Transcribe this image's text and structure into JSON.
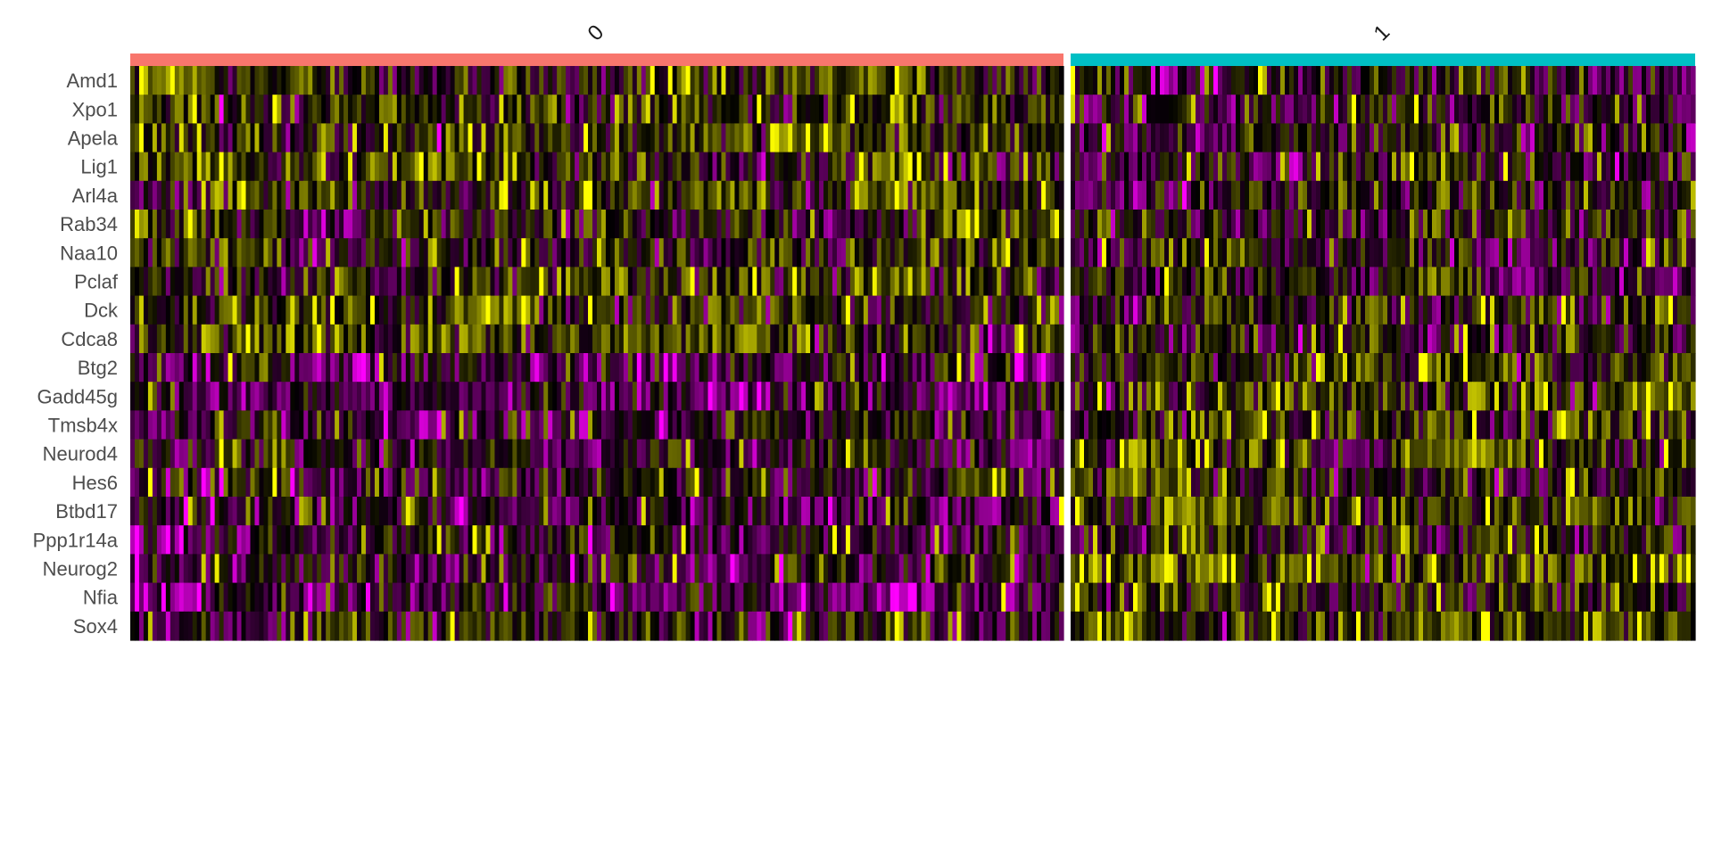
{
  "chart_data": {
    "type": "heatmap",
    "title": "",
    "xlabel": "",
    "ylabel": "",
    "groups": [
      {
        "name": "0",
        "color": "#F8766D"
      },
      {
        "name": "1",
        "color": "#00BFC4"
      }
    ],
    "genes": [
      "Amd1",
      "Xpo1",
      "Apela",
      "Lig1",
      "Arl4a",
      "Rab34",
      "Naa10",
      "Pclaf",
      "Dck",
      "Cdca8",
      "Btg2",
      "Gadd45g",
      "Tmsb4x",
      "Neurod4",
      "Hes6",
      "Btbd17",
      "Ppp1r14a",
      "Neurog2",
      "Nfia",
      "Sox4"
    ],
    "group_mean_scaled_expression": {
      "0": [
        0.35,
        0.3,
        0.3,
        0.3,
        0.25,
        0.3,
        0.25,
        0.25,
        0.25,
        0.25,
        -0.75,
        -0.45,
        -0.4,
        -0.45,
        -0.35,
        -0.35,
        -0.35,
        -0.3,
        -0.55,
        -0.05
      ],
      "1": [
        -0.2,
        -0.2,
        -0.2,
        -0.15,
        -0.15,
        -0.2,
        -0.15,
        -0.15,
        -0.15,
        -0.15,
        0.55,
        0.4,
        0.4,
        0.4,
        0.35,
        0.35,
        0.35,
        0.3,
        0.15,
        0.2
      ]
    },
    "color_scale": {
      "low": "#FF00FF",
      "mid": "#000000",
      "high": "#FFFF00",
      "range": [
        -2.5,
        2.5
      ]
    },
    "legend": "none"
  }
}
